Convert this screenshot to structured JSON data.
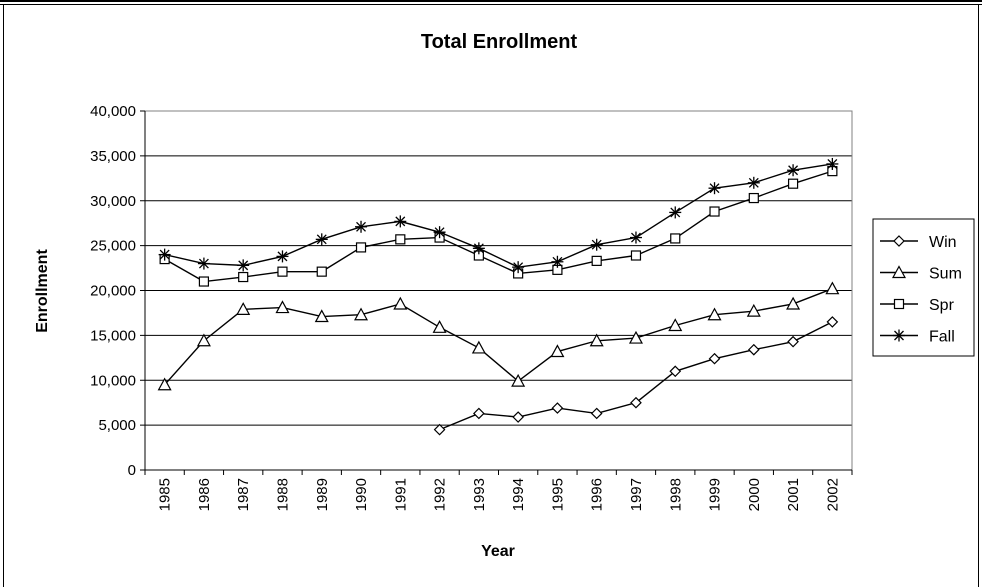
{
  "chart_data": {
    "type": "line",
    "title": "Total Enrollment",
    "xlabel": "Year",
    "ylabel": "Enrollment",
    "ylim": [
      0,
      40000
    ],
    "yticks": [
      0,
      5000,
      10000,
      15000,
      20000,
      25000,
      30000,
      35000,
      40000
    ],
    "ytick_labels": [
      "0",
      "5,000",
      "10,000",
      "15,000",
      "20,000",
      "25,000",
      "30,000",
      "35,000",
      "40,000"
    ],
    "grid": true,
    "legend_position": "right",
    "categories": [
      "1985",
      "1986",
      "1987",
      "1988",
      "1989",
      "1990",
      "1991",
      "1992",
      "1993",
      "1994",
      "1995",
      "1996",
      "1997",
      "1998",
      "1999",
      "2000",
      "2001",
      "2002"
    ],
    "series": [
      {
        "name": "Win",
        "marker": "diamond",
        "values": [
          null,
          null,
          null,
          null,
          null,
          null,
          null,
          4500,
          6300,
          5900,
          6900,
          6300,
          7500,
          11000,
          12400,
          13400,
          14300,
          16500
        ]
      },
      {
        "name": "Sum",
        "marker": "triangle",
        "values": [
          9500,
          14400,
          17900,
          18100,
          17100,
          17300,
          18500,
          15900,
          13600,
          9900,
          13200,
          14400,
          14700,
          16100,
          17300,
          17700,
          18500,
          20200
        ]
      },
      {
        "name": "Spr",
        "marker": "square",
        "values": [
          23500,
          21000,
          21500,
          22100,
          22100,
          24800,
          25700,
          25900,
          23900,
          21900,
          22300,
          23300,
          23900,
          25800,
          28800,
          30300,
          31900,
          33300
        ]
      },
      {
        "name": "Fall",
        "marker": "star",
        "values": [
          24000,
          23000,
          22800,
          23800,
          25700,
          27100,
          27700,
          26500,
          24700,
          22600,
          23200,
          25100,
          25900,
          28700,
          31400,
          32000,
          33400,
          34100
        ]
      }
    ]
  }
}
